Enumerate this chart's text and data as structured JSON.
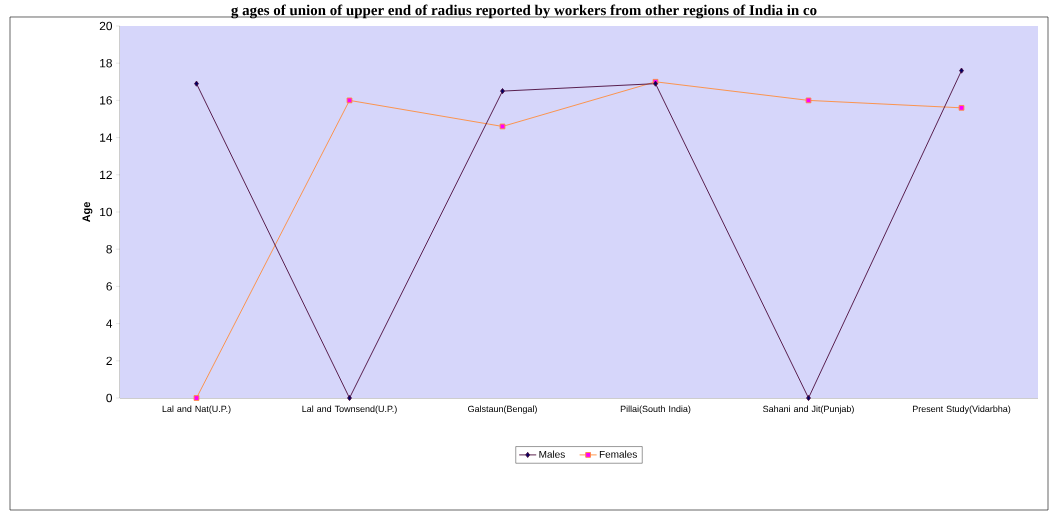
{
  "chart_data": {
    "type": "line",
    "title": "g ages of union of upper end of radius reported by workers from other regions of India in co",
    "ylabel": "Age",
    "categories": [
      "Lal and Nat(U.P.)",
      "Lal and Townsend(U.P.)",
      "Galstaun(Bengal)",
      "Pillai(South India)",
      "Sahani and Jit(Punjab)",
      "Present Study(Vidarbha)"
    ],
    "series": [
      {
        "name": "Males",
        "color": "#4a0a3a",
        "marker": "diamond",
        "values": [
          16.9,
          0,
          16.5,
          16.9,
          0,
          17.6
        ]
      },
      {
        "name": "Females",
        "color": "#ff8c3a",
        "marker": "square",
        "values": [
          0,
          16,
          14.6,
          17,
          16,
          15.6
        ]
      }
    ],
    "ylim": [
      0,
      20
    ],
    "yticks": [
      0,
      2,
      4,
      6,
      8,
      10,
      12,
      14,
      16,
      18,
      20
    ],
    "grid": false,
    "legend": "bottom"
  }
}
